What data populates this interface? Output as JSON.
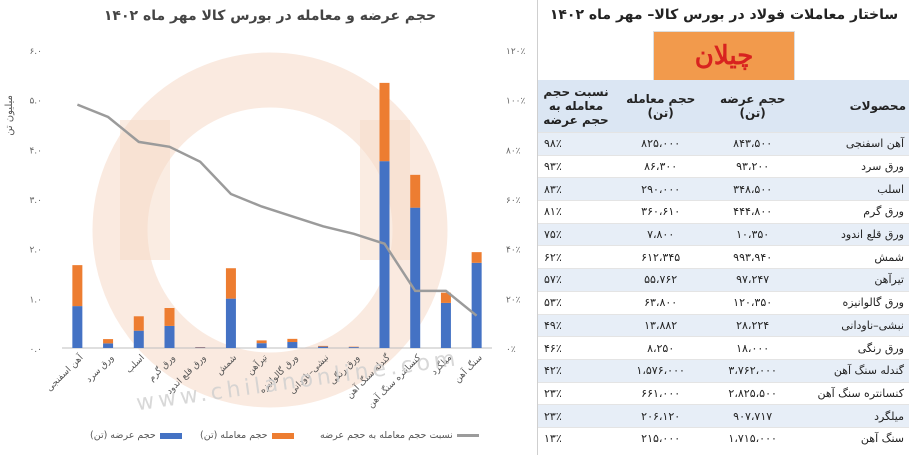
{
  "chart_title": "حجم عرضه و معامله در بورس کالا مهر ماه ۱۴۰۲",
  "table_title": "ساختار معاملات فولاد در بورس کالا– مهر ماه ۱۴۰۲",
  "logo_text": "چیلان",
  "watermark": "www.chilanonline.com",
  "table_headers": {
    "product": "محصولات",
    "supply": "حجم عرضه (تن)",
    "traded": "حجم معامله (تن)",
    "ratio": "نسبت حجم معامله به حجم عرضه"
  },
  "table_rows": [
    {
      "product": "آهن اسفنجی",
      "supply": "۸۴۳،۵۰۰",
      "traded": "۸۲۵،۰۰۰",
      "ratio": "۹۸٪"
    },
    {
      "product": "ورق سرد",
      "supply": "۹۳،۲۰۰",
      "traded": "۸۶،۳۰۰",
      "ratio": "۹۳٪"
    },
    {
      "product": "اسلب",
      "supply": "۳۴۸،۵۰۰",
      "traded": "۲۹۰،۰۰۰",
      "ratio": "۸۳٪"
    },
    {
      "product": "ورق گرم",
      "supply": "۴۴۴،۸۰۰",
      "traded": "۳۶۰،۶۱۰",
      "ratio": "۸۱٪"
    },
    {
      "product": "ورق قلع اندود",
      "supply": "۱۰،۳۵۰",
      "traded": "۷،۸۰۰",
      "ratio": "۷۵٪"
    },
    {
      "product": "شمش",
      "supply": "۹۹۳،۹۴۰",
      "traded": "۶۱۲،۳۴۵",
      "ratio": "۶۲٪"
    },
    {
      "product": "تیرآهن",
      "supply": "۹۷،۲۴۷",
      "traded": "۵۵،۷۶۲",
      "ratio": "۵۷٪"
    },
    {
      "product": "ورق گالوانیزه",
      "supply": "۱۲۰،۳۵۰",
      "traded": "۶۳،۸۰۰",
      "ratio": "۵۳٪"
    },
    {
      "product": "نبشی–ناودانی",
      "supply": "۲۸،۲۲۴",
      "traded": "۱۳،۸۸۲",
      "ratio": "۴۹٪"
    },
    {
      "product": "ورق رنگی",
      "supply": "۱۸،۰۰۰",
      "traded": "۸،۲۵۰",
      "ratio": "۴۶٪"
    },
    {
      "product": "گندله سنگ آهن",
      "supply": "۳،۷۶۲،۰۰۰",
      "traded": "۱،۵۷۶،۰۰۰",
      "ratio": "۴۲٪"
    },
    {
      "product": "کنسانتره سنگ آهن",
      "supply": "۲،۸۲۵،۵۰۰",
      "traded": "۶۶۱،۰۰۰",
      "ratio": "۲۳٪"
    },
    {
      "product": "میلگرد",
      "supply": "۹۰۷،۷۱۷",
      "traded": "۲۰۶،۱۲۰",
      "ratio": "۲۳٪"
    },
    {
      "product": "سنگ آهن",
      "supply": "۱،۷۱۵،۰۰۰",
      "traded": "۲۱۵،۰۰۰",
      "ratio": "۱۳٪"
    }
  ],
  "chart_data": {
    "type": "bar",
    "stacked": true,
    "title": "حجم عرضه و معامله در بورس کالا مهر ماه ۱۴۰۲",
    "ylabel": "میلیون تن",
    "ylim": [
      0,
      6
    ],
    "y2lim": [
      0,
      120
    ],
    "y_ticks": [
      "۰.۰",
      "۱.۰",
      "۲.۰",
      "۳.۰",
      "۴.۰",
      "۵.۰",
      "۶.۰"
    ],
    "y2_ticks": [
      "۰٪",
      "۲۰٪",
      "۴۰٪",
      "۶۰٪",
      "۸۰٪",
      "۱۰۰٪",
      "۱۲۰٪"
    ],
    "categories": [
      "آهن اسفنجی",
      "ورق سرد",
      "اسلب",
      "ورق گرم",
      "ورق قلع اندود",
      "شمش",
      "تیرآهن",
      "ورق گالوانیزه",
      "نبشی–ناودانی",
      "ورق رنگی",
      "گندله سنگ آهن",
      "کنسانتره سنگ آهن",
      "میلگرد",
      "سنگ آهن"
    ],
    "series": [
      {
        "name": "حجم عرضه (تن)",
        "color": "#4472c4",
        "values": [
          0.8435,
          0.0932,
          0.3485,
          0.4448,
          0.0104,
          0.9939,
          0.0972,
          0.1204,
          0.0282,
          0.018,
          3.762,
          2.8255,
          0.9077,
          1.715
        ]
      },
      {
        "name": "حجم معامله (تن)",
        "color": "#ed7d31",
        "values": [
          0.825,
          0.0863,
          0.29,
          0.3606,
          0.0078,
          0.6123,
          0.0558,
          0.0638,
          0.0139,
          0.0083,
          1.576,
          0.661,
          0.2061,
          0.215
        ]
      },
      {
        "name": "نسبت حجم معامله به حجم عرضه",
        "color": "#a5a5a5",
        "axis": "secondary",
        "values": [
          98,
          93,
          83,
          81,
          75,
          62,
          57,
          53,
          49,
          46,
          42,
          23,
          23,
          13
        ]
      }
    ],
    "grid": false,
    "legend": "bottom"
  }
}
